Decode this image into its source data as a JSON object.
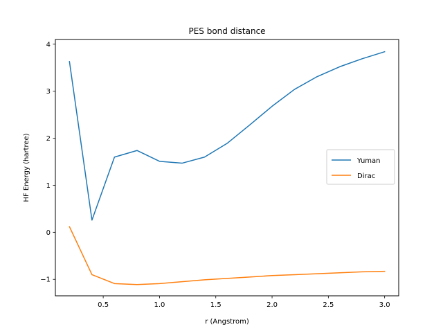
{
  "chart_data": {
    "type": "line",
    "title": "PES bond distance",
    "xlabel": "r (Angstrom)",
    "ylabel": "HF Energy (hartree)",
    "xlim": [
      0.075,
      3.125
    ],
    "ylim": [
      -1.35,
      4.1
    ],
    "xticks": [
      0.5,
      1.0,
      1.5,
      2.0,
      2.5,
      3.0
    ],
    "xtick_labels": [
      "0.5",
      "1.0",
      "1.5",
      "2.0",
      "2.5",
      "3.0"
    ],
    "yticks": [
      -1,
      0,
      1,
      2,
      3,
      4
    ],
    "ytick_labels": [
      "−1",
      "0",
      "1",
      "2",
      "3",
      "4"
    ],
    "grid": false,
    "legend_position": "center-right",
    "x": [
      0.2,
      0.4,
      0.6,
      0.8,
      1.0,
      1.2,
      1.4,
      1.6,
      1.8,
      2.0,
      2.2,
      2.4,
      2.6,
      2.8,
      3.0
    ],
    "series": [
      {
        "name": "Yuman",
        "color": "#1f77b4",
        "values": [
          3.63,
          0.26,
          1.6,
          1.74,
          1.51,
          1.47,
          1.6,
          1.89,
          2.28,
          2.68,
          3.04,
          3.31,
          3.52,
          3.69,
          3.84
        ]
      },
      {
        "name": "Dirac",
        "color": "#ff7f0e",
        "values": [
          0.12,
          -0.9,
          -1.09,
          -1.11,
          -1.09,
          -1.05,
          -1.01,
          -0.98,
          -0.95,
          -0.92,
          -0.9,
          -0.88,
          -0.86,
          -0.84,
          -0.83
        ]
      }
    ]
  }
}
